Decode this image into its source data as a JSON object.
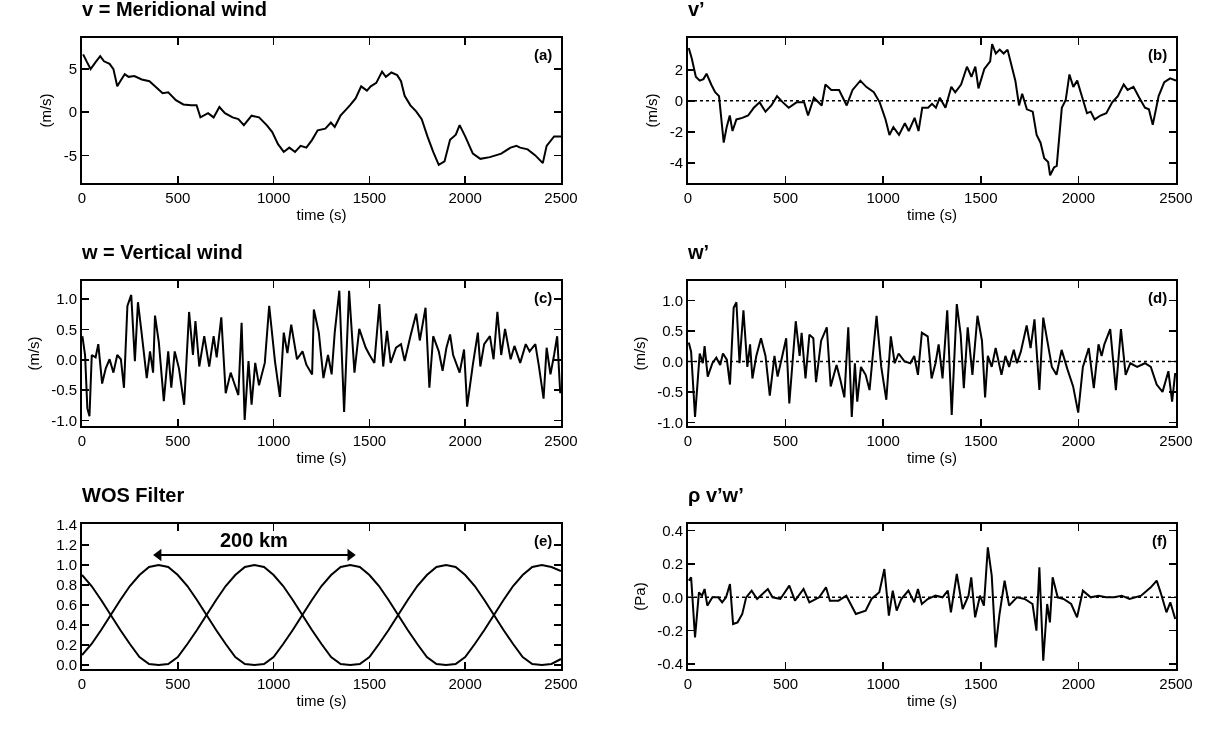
{
  "chart_data": [
    {
      "type": "line",
      "title": "v = Meridional wind",
      "xlabel": "time (s)",
      "ylabel": "(m/s)",
      "annotations": [
        "(a)"
      ],
      "xlim": [
        0,
        2500
      ],
      "xticks": [
        0,
        500,
        1000,
        1500,
        2000,
        2500
      ],
      "ylim": [
        -8.2,
        8.6
      ],
      "yticks": [
        -5,
        0,
        5
      ],
      "x": [
        6,
        26,
        45,
        71,
        95,
        115,
        144,
        164,
        184,
        203,
        223,
        243,
        273,
        312,
        352,
        381,
        421,
        450,
        490,
        529,
        569,
        598,
        618,
        658,
        687,
        717,
        746,
        786,
        816,
        845,
        885,
        924,
        964,
        993,
        1023,
        1053,
        1082,
        1112,
        1141,
        1171,
        1201,
        1230,
        1270,
        1299,
        1319,
        1349,
        1378,
        1398,
        1428,
        1457,
        1487,
        1507,
        1536,
        1566,
        1586,
        1615,
        1645,
        1665,
        1684,
        1714,
        1744,
        1773,
        1803,
        1833,
        1862,
        1892,
        1921,
        1951,
        1971,
        2000,
        2040,
        2079,
        2129,
        2188,
        2237,
        2267,
        2287,
        2326,
        2366,
        2405,
        2425,
        2464,
        2500
      ],
      "series": [
        {
          "color": "#000000",
          "values": [
            6.7,
            5.8,
            5.0,
            5.8,
            6.5,
            5.9,
            5.6,
            5.0,
            3.0,
            3.7,
            4.4,
            4.1,
            4.2,
            3.8,
            3.6,
            3.0,
            2.2,
            2.3,
            1.4,
            0.9,
            0.8,
            0.8,
            -0.6,
            -0.1,
            -0.6,
            0.6,
            -0.1,
            -0.6,
            -0.8,
            -1.5,
            -0.4,
            -0.6,
            -1.5,
            -2.3,
            -3.7,
            -4.6,
            -4.1,
            -4.6,
            -3.9,
            -4.1,
            -3.2,
            -2.1,
            -1.9,
            -1.2,
            -1.7,
            -0.4,
            0.3,
            0.8,
            1.6,
            3.0,
            2.5,
            3.0,
            3.4,
            4.7,
            4.1,
            4.6,
            4.3,
            3.6,
            1.9,
            0.8,
            0.1,
            -0.8,
            -2.8,
            -4.6,
            -6.1,
            -5.7,
            -3.2,
            -2.6,
            -1.5,
            -2.8,
            -4.8,
            -5.4,
            -5.2,
            -4.8,
            -4.1,
            -3.9,
            -4.1,
            -4.3,
            -5.0,
            -5.9,
            -3.9,
            -2.8,
            -2.8
          ]
        }
      ]
    },
    {
      "type": "line",
      "title": "v’",
      "xlabel": "time (s)",
      "ylabel": "(m/s)",
      "annotations": [
        "(b)"
      ],
      "xlim": [
        0,
        2500
      ],
      "xticks": [
        0,
        500,
        1000,
        1500,
        2000,
        2500
      ],
      "ylim": [
        -5.3,
        4.05
      ],
      "yticks": [
        -4,
        -2,
        0,
        2
      ],
      "ref_lines": [
        {
          "axis": "y",
          "value": 0,
          "color": "#000000",
          "line_style": "dotted"
        }
      ],
      "x": [
        4,
        20,
        40,
        60,
        79,
        95,
        119,
        139,
        159,
        183,
        198,
        214,
        228,
        248,
        278,
        308,
        337,
        367,
        397,
        427,
        456,
        486,
        516,
        556,
        595,
        615,
        645,
        685,
        704,
        734,
        774,
        813,
        843,
        883,
        913,
        952,
        982,
        1012,
        1032,
        1052,
        1081,
        1111,
        1131,
        1161,
        1181,
        1200,
        1230,
        1250,
        1270,
        1290,
        1319,
        1349,
        1369,
        1399,
        1429,
        1452,
        1472,
        1488,
        1518,
        1548,
        1558,
        1577,
        1597,
        1617,
        1637,
        1657,
        1677,
        1696,
        1712,
        1736,
        1766,
        1786,
        1806,
        1825,
        1845,
        1855,
        1875,
        1889,
        1915,
        1935,
        1954,
        1974,
        1994,
        2014,
        2044,
        2063,
        2083,
        2113,
        2143,
        2173,
        2202,
        2232,
        2252,
        2282,
        2312,
        2341,
        2361,
        2381,
        2411,
        2440,
        2470,
        2500
      ],
      "series": [
        {
          "color": "#000000",
          "values": [
            3.4,
            2.7,
            1.55,
            1.3,
            1.4,
            1.75,
            1.05,
            0.55,
            0.3,
            -2.7,
            -1.7,
            -0.95,
            -1.95,
            -1.2,
            -1.1,
            -0.95,
            -0.45,
            -0.1,
            -0.7,
            -0.3,
            0.3,
            -0.1,
            -0.45,
            -0.1,
            -0.1,
            -0.95,
            0.2,
            -0.3,
            1.05,
            0.7,
            0.7,
            -0.3,
            0.7,
            1.3,
            0.9,
            0.55,
            -0.1,
            -1.2,
            -2.2,
            -1.7,
            -2.2,
            -1.45,
            -1.95,
            -1.1,
            -1.95,
            -0.45,
            -0.45,
            -0.2,
            -0.45,
            0.2,
            -0.45,
            0.9,
            0.55,
            1.05,
            2.2,
            1.55,
            2.2,
            0.8,
            2.05,
            2.55,
            3.65,
            3.05,
            3.3,
            3.05,
            3.3,
            2.3,
            1.3,
            -0.3,
            0.45,
            -0.55,
            -0.7,
            -2.2,
            -2.7,
            -3.7,
            -3.95,
            -4.8,
            -4.3,
            -4.2,
            -0.45,
            0.05,
            1.7,
            0.9,
            1.3,
            0.45,
            -0.8,
            -0.7,
            -1.2,
            -0.95,
            -0.8,
            -0.1,
            0.3,
            1.05,
            0.7,
            0.9,
            0.2,
            -0.45,
            -0.55,
            -1.55,
            0.3,
            1.2,
            1.45,
            1.3
          ]
        }
      ]
    },
    {
      "type": "line",
      "title": "w = Vertical wind",
      "xlabel": "time (s)",
      "ylabel": "(m/s)",
      "annotations": [
        "(c)"
      ],
      "xlim": [
        0,
        2500
      ],
      "xticks": [
        0,
        500,
        1000,
        1500,
        2000,
        2500
      ],
      "ylim": [
        -1.09,
        1.3
      ],
      "yticks": [
        {
          "value": -1,
          "label": "-1.0"
        },
        {
          "value": -0.5,
          "label": "-0.5"
        },
        {
          "value": 0,
          "label": "0.0"
        },
        {
          "value": 0.5,
          "label": "0.5"
        },
        {
          "value": 1,
          "label": "1.0"
        }
      ],
      "x": [
        2,
        16,
        28,
        39,
        51,
        71,
        85,
        105,
        124,
        144,
        164,
        184,
        203,
        219,
        237,
        257,
        276,
        292,
        312,
        338,
        355,
        371,
        381,
        401,
        427,
        450,
        466,
        484,
        506,
        533,
        559,
        579,
        592,
        612,
        638,
        664,
        687,
        703,
        727,
        750,
        776,
        792,
        816,
        833,
        849,
        869,
        885,
        904,
        924,
        954,
        977,
        1007,
        1033,
        1053,
        1072,
        1092,
        1122,
        1151,
        1171,
        1201,
        1210,
        1236,
        1260,
        1284,
        1303,
        1319,
        1343,
        1368,
        1394,
        1422,
        1447,
        1481,
        1501,
        1526,
        1552,
        1572,
        1592,
        1611,
        1639,
        1665,
        1684,
        1714,
        1744,
        1763,
        1793,
        1813,
        1833,
        1862,
        1882,
        1902,
        1921,
        1937,
        1971,
        1994,
        2010,
        2040,
        2066,
        2079,
        2099,
        2129,
        2148,
        2168,
        2188,
        2208,
        2237,
        2257,
        2287,
        2316,
        2336,
        2366,
        2385,
        2409,
        2425,
        2445,
        2464,
        2480,
        2496
      ],
      "series": [
        {
          "color": "#000000",
          "values": [
            0.39,
            0.08,
            -0.8,
            -0.93,
            0.08,
            0.04,
            0.26,
            -0.39,
            -0.14,
            0.01,
            -0.21,
            0.08,
            0.01,
            -0.46,
            0.89,
            1.07,
            -0.02,
            0.95,
            0.42,
            -0.3,
            0.14,
            -0.21,
            0.73,
            0.29,
            -0.68,
            0.14,
            -0.46,
            0.14,
            -0.14,
            -0.74,
            0.79,
            0.08,
            0.64,
            -0.11,
            0.39,
            -0.11,
            0.39,
            0.04,
            0.7,
            -0.55,
            -0.21,
            -0.36,
            -0.58,
            0.61,
            -0.99,
            -0.02,
            -0.74,
            -0.05,
            -0.42,
            -0.05,
            0.89,
            -0.02,
            -0.61,
            0.45,
            0.11,
            0.58,
            0.01,
            0.14,
            -0.08,
            -0.24,
            0.83,
            0.45,
            -0.3,
            0.08,
            -0.24,
            0.45,
            1.14,
            -0.86,
            1.14,
            -0.21,
            0.51,
            0.2,
            0.08,
            -0.05,
            0.92,
            -0.11,
            0.48,
            -0.05,
            0.2,
            0.26,
            -0.02,
            0.39,
            0.76,
            0.32,
            0.86,
            -0.46,
            0.39,
            0.14,
            -0.18,
            0.2,
            0.42,
            0.08,
            -0.21,
            0.17,
            -0.77,
            -0.08,
            0.45,
            -0.11,
            0.26,
            0.39,
            0.01,
            0.79,
            0.08,
            0.51,
            0.01,
            0.23,
            -0.05,
            0.26,
            0.14,
            0.26,
            -0.11,
            -0.64,
            0.2,
            -0.24,
            0.08,
            0.39,
            -0.55
          ]
        }
      ]
    },
    {
      "type": "line",
      "title": "w’",
      "xlabel": "time (s)",
      "ylabel": "(m/s)",
      "annotations": [
        "(d)"
      ],
      "xlim": [
        0,
        2500
      ],
      "xticks": [
        0,
        500,
        1000,
        1500,
        2000,
        2500
      ],
      "ylim": [
        -1.06,
        1.32
      ],
      "yticks": [
        {
          "value": -1,
          "label": "-1.0"
        },
        {
          "value": -0.5,
          "label": "-0.5"
        },
        {
          "value": 0,
          "label": "0.0"
        },
        {
          "value": 0.5,
          "label": "0.5"
        },
        {
          "value": 1,
          "label": "1.0"
        }
      ],
      "ref_lines": [
        {
          "axis": "y",
          "value": 0,
          "color": "#000000",
          "line_style": "dotted"
        }
      ],
      "x": [
        4,
        16,
        36,
        60,
        76,
        85,
        101,
        125,
        145,
        165,
        179,
        199,
        215,
        234,
        248,
        264,
        284,
        304,
        318,
        330,
        350,
        374,
        397,
        419,
        443,
        459,
        483,
        503,
        519,
        552,
        572,
        582,
        602,
        622,
        642,
        656,
        682,
        711,
        731,
        761,
        781,
        801,
        821,
        839,
        855,
        867,
        886,
        910,
        930,
        966,
        990,
        1016,
        1039,
        1059,
        1079,
        1109,
        1139,
        1159,
        1178,
        1198,
        1228,
        1248,
        1268,
        1284,
        1304,
        1328,
        1351,
        1377,
        1397,
        1413,
        1433,
        1457,
        1483,
        1506,
        1522,
        1536,
        1556,
        1576,
        1606,
        1626,
        1645,
        1669,
        1685,
        1705,
        1735,
        1755,
        1775,
        1800,
        1820,
        1844,
        1864,
        1888,
        1914,
        1944,
        1973,
        1999,
        2023,
        2053,
        2079,
        2103,
        2119,
        2133,
        2163,
        2192,
        2218,
        2242,
        2266,
        2301,
        2341,
        2371,
        2401,
        2431,
        2461,
        2480,
        2496
      ],
      "series": [
        {
          "color": "#000000",
          "values": [
            0.31,
            0.16,
            -0.91,
            0.13,
            -0.03,
            0.25,
            -0.25,
            -0.03,
            0.06,
            -0.06,
            0.13,
            0.03,
            -0.38,
            0.88,
            0.97,
            -0.03,
            0.84,
            -0.09,
            0.28,
            -0.28,
            0.09,
            0.38,
            0.09,
            -0.56,
            0.09,
            -0.25,
            0.09,
            0.38,
            -0.69,
            0.66,
            0.09,
            0.47,
            -0.28,
            0.44,
            0.38,
            -0.34,
            0.34,
            0.56,
            -0.41,
            -0.06,
            -0.31,
            -0.59,
            0.56,
            -0.91,
            -0.03,
            -0.66,
            -0.09,
            -0.22,
            -0.47,
            0.75,
            -0.09,
            -0.63,
            0.41,
            -0.03,
            0.13,
            0,
            -0.03,
            0.09,
            -0.22,
            0.47,
            0.41,
            -0.28,
            -0.03,
            0.28,
            -0.28,
            0.84,
            -0.88,
            0.94,
            0.44,
            -0.44,
            0.56,
            -0.22,
            0.75,
            0.34,
            -0.59,
            0.09,
            -0.09,
            0.22,
            -0.22,
            0.09,
            -0.09,
            0.19,
            -0.03,
            0.16,
            0.59,
            0.22,
            0.69,
            -0.47,
            0.72,
            0.28,
            -0.09,
            -0.22,
            0.19,
            -0.13,
            -0.41,
            -0.84,
            -0.09,
            0.22,
            -0.44,
            0.28,
            0.09,
            0.28,
            0.53,
            -0.47,
            0.53,
            -0.22,
            -0.03,
            -0.09,
            -0.03,
            -0.09,
            -0.38,
            -0.5,
            -0.16,
            -0.66,
            -0.19
          ]
        }
      ]
    },
    {
      "type": "line",
      "title": "WOS Filter",
      "xlabel": "time (s)",
      "annotations": [
        "(e)"
      ],
      "xlim": [
        0,
        2500
      ],
      "xticks": [
        0,
        500,
        1000,
        1500,
        2000,
        2500
      ],
      "ylim": [
        -0.04,
        1.41
      ],
      "yticks": [
        {
          "value": 0,
          "label": "0.0"
        },
        {
          "value": 0.2,
          "label": "0.2"
        },
        {
          "value": 0.4,
          "label": "0.4"
        },
        {
          "value": 0.6,
          "label": "0.6"
        },
        {
          "value": 0.8,
          "label": "0.8"
        },
        {
          "value": 1,
          "label": "1.0"
        },
        {
          "value": 1.2,
          "label": "1.2"
        },
        {
          "value": 1.4,
          "label": "1.4"
        }
      ],
      "x": [
        0,
        50,
        100,
        150,
        200,
        250,
        300,
        350,
        400,
        450,
        500,
        550,
        600,
        650,
        700,
        750,
        800,
        850,
        900,
        950,
        1000,
        1050,
        1100,
        1150,
        1200,
        1250,
        1300,
        1350,
        1400,
        1450,
        1500,
        1550,
        1600,
        1650,
        1700,
        1750,
        1800,
        1850,
        1900,
        1950,
        2000,
        2050,
        2100,
        2150,
        2200,
        2250,
        2300,
        2350,
        2400,
        2450,
        2500
      ],
      "series": [
        {
          "color": "#000000",
          "values": [
            0.9,
            0.79,
            0.65,
            0.5,
            0.35,
            0.21,
            0.08,
            0.01,
            0,
            0.01,
            0.08,
            0.21,
            0.35,
            0.5,
            0.65,
            0.79,
            0.9,
            0.98,
            1,
            0.98,
            0.9,
            0.79,
            0.65,
            0.5,
            0.35,
            0.21,
            0.08,
            0.01,
            0,
            0.01,
            0.08,
            0.21,
            0.35,
            0.5,
            0.65,
            0.79,
            0.9,
            0.98,
            1,
            0.98,
            0.9,
            0.79,
            0.65,
            0.5,
            0.35,
            0.21,
            0.08,
            0.01,
            0,
            0.01,
            0.06
          ]
        },
        {
          "color": "#000000",
          "values": [
            0.1,
            0.21,
            0.35,
            0.5,
            0.65,
            0.79,
            0.9,
            0.98,
            1,
            0.98,
            0.9,
            0.79,
            0.65,
            0.5,
            0.35,
            0.21,
            0.08,
            0.01,
            0,
            0.01,
            0.08,
            0.21,
            0.35,
            0.5,
            0.65,
            0.79,
            0.9,
            0.98,
            1,
            0.98,
            0.9,
            0.79,
            0.65,
            0.5,
            0.35,
            0.21,
            0.08,
            0.01,
            0,
            0.01,
            0.08,
            0.21,
            0.35,
            0.5,
            0.65,
            0.79,
            0.9,
            0.98,
            1,
            0.98,
            0.94
          ]
        },
        {
          "type": "line",
          "name": "200 km",
          "color": "#000000",
          "marker": "triangle",
          "x": [
            400,
            1400
          ],
          "values": [
            1.1,
            1.1
          ]
        }
      ]
    },
    {
      "type": "line",
      "title": "ρ v’w’",
      "xlabel": "time (s)",
      "ylabel": "(Pa)",
      "annotations": [
        "(f)"
      ],
      "xlim": [
        0,
        2500
      ],
      "xticks": [
        0,
        500,
        1000,
        1500,
        2000,
        2500
      ],
      "ylim": [
        -0.43,
        0.44
      ],
      "yticks": [
        {
          "value": -0.4,
          "label": "-0.4"
        },
        {
          "value": -0.2,
          "label": "-0.2"
        },
        {
          "value": 0,
          "label": "0.0"
        },
        {
          "value": 0.2,
          "label": "0.2"
        },
        {
          "value": 0.4,
          "label": "0.4"
        }
      ],
      "ref_lines": [
        {
          "axis": "y",
          "value": 0,
          "color": "#000000",
          "line_style": "dotted"
        }
      ],
      "x": [
        4,
        16,
        36,
        56,
        72,
        85,
        99,
        125,
        155,
        175,
        195,
        215,
        231,
        254,
        278,
        298,
        326,
        354,
        409,
        433,
        473,
        519,
        548,
        592,
        622,
        672,
        707,
        727,
        771,
        811,
        860,
        910,
        940,
        980,
        1006,
        1029,
        1049,
        1069,
        1093,
        1129,
        1159,
        1178,
        1198,
        1228,
        1268,
        1304,
        1331,
        1347,
        1377,
        1407,
        1437,
        1451,
        1471,
        1496,
        1516,
        1536,
        1556,
        1576,
        1596,
        1622,
        1645,
        1685,
        1725,
        1765,
        1785,
        1800,
        1820,
        1840,
        1854,
        1868,
        1894,
        1924,
        1963,
        1993,
        2023,
        2063,
        2103,
        2142,
        2182,
        2222,
        2262,
        2321,
        2371,
        2401,
        2421,
        2451,
        2471,
        2496
      ],
      "series": [
        {
          "color": "#000000",
          "values": [
            0.1,
            0.12,
            -0.24,
            0.03,
            0.01,
            0.05,
            -0.05,
            0,
            0,
            -0.03,
            0,
            0.08,
            -0.16,
            -0.15,
            -0.1,
            0,
            0.04,
            -0.01,
            0.05,
            0,
            -0.01,
            0.07,
            -0.02,
            0.05,
            -0.03,
            0,
            0.06,
            -0.02,
            -0.02,
            0.01,
            -0.1,
            -0.08,
            -0.01,
            0.03,
            0.17,
            -0.11,
            0.04,
            -0.08,
            -0.01,
            0.04,
            -0.03,
            0.05,
            -0.04,
            -0.01,
            0.01,
            0,
            0.04,
            -0.09,
            0.14,
            -0.07,
            0.01,
            0.12,
            -0.12,
            0.01,
            -0.05,
            0.3,
            0.13,
            -0.3,
            -0.1,
            0.1,
            -0.05,
            0,
            -0.01,
            -0.04,
            -0.2,
            0.18,
            -0.38,
            -0.04,
            -0.15,
            0.12,
            0,
            -0.01,
            -0.04,
            -0.12,
            0.04,
            0,
            0.01,
            0,
            0,
            0.01,
            -0.01,
            0.01,
            0.06,
            0.1,
            0.03,
            -0.09,
            -0.03,
            -0.13
          ]
        }
      ]
    }
  ]
}
